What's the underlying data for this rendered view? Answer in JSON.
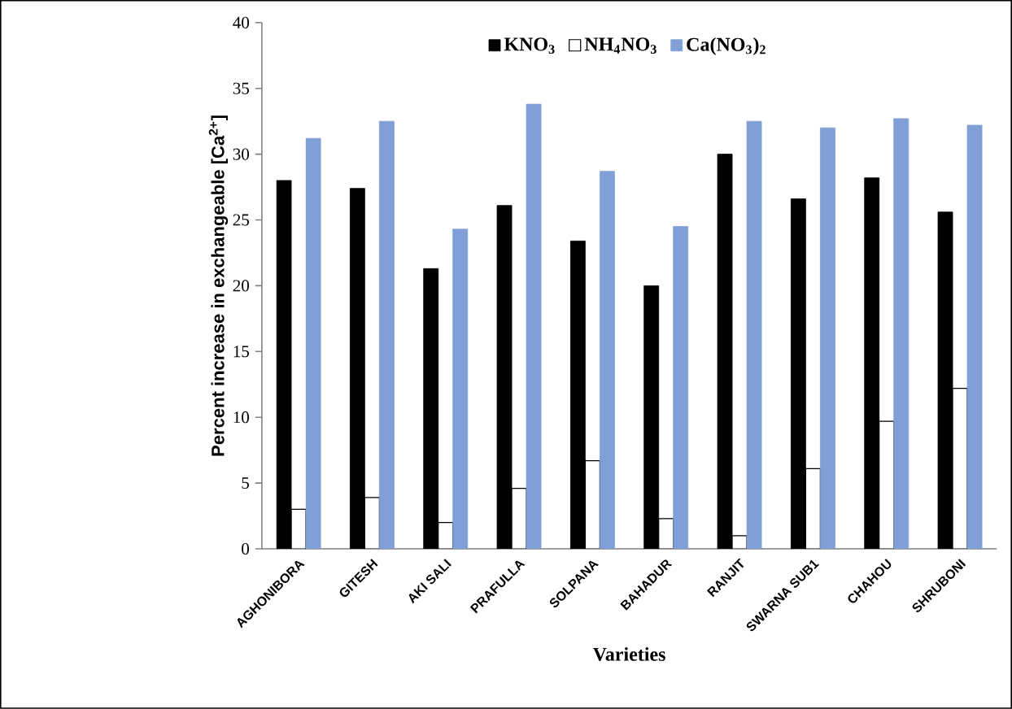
{
  "chart_data": {
    "type": "bar",
    "xlabel": "Varieties",
    "ylabel": "Percent increase in exchangeable [Ca$^{2+}$]",
    "categories": [
      "AGHONIBORA",
      "GITESH",
      "AKI SALI",
      "PRAFULLA",
      "SOLPANA",
      "BAHADUR",
      "RANJIT",
      "SWARNA SUB1",
      "CHAHOU",
      "SHRUBONI"
    ],
    "series": [
      {
        "name": "KNO$_{3}$",
        "color": "#000000",
        "values": [
          28.0,
          27.4,
          21.3,
          26.1,
          23.4,
          20.0,
          30.0,
          26.6,
          28.2,
          25.6
        ]
      },
      {
        "name": "NH$_{4}$NO$_{3}$",
        "color": "#ffffff",
        "values": [
          3.0,
          3.9,
          2.0,
          4.6,
          6.7,
          2.3,
          1.0,
          6.1,
          9.7,
          12.2
        ]
      },
      {
        "name": "Ca(NO$_{3}$)$_{2}$",
        "color": "#7f9fd6",
        "values": [
          31.2,
          32.5,
          24.3,
          33.8,
          28.7,
          24.5,
          32.5,
          32.0,
          32.7,
          32.2
        ]
      }
    ],
    "ylim": [
      0,
      40
    ],
    "yticks": [
      0,
      5,
      10,
      15,
      20,
      25,
      30,
      35,
      40
    ],
    "legend": "top",
    "grid": false
  }
}
